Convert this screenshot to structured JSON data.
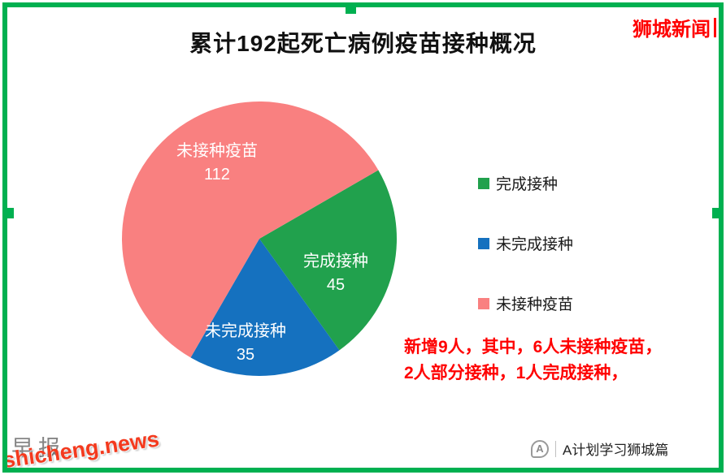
{
  "frame": {
    "border_color": "#00B050"
  },
  "header": {
    "brand": "狮城新闻",
    "brand_color": "#FF0000"
  },
  "chart_data": {
    "type": "pie",
    "title": "累计192起死亡病例疫苗接种概况",
    "total": 192,
    "start_angle_deg": 60,
    "grid": false,
    "legend_position": "right",
    "slices": [
      {
        "label": "完成接种",
        "value": 45,
        "color": "#21A14D"
      },
      {
        "label": "未完成接种",
        "value": 35,
        "color": "#1571BF"
      },
      {
        "label": "未接种疫苗",
        "value": 112,
        "color": "#F98080"
      }
    ]
  },
  "annotation": {
    "line1": "新增9人，其中，6人未接种疫苗，",
    "line2": "2人部分接种，1人完成接种，",
    "color": "#FF0000"
  },
  "watermarks": {
    "faint": "早报",
    "site": "shicheng.news",
    "footer_icon": "A",
    "footer_account": "A计划学习狮城篇"
  }
}
